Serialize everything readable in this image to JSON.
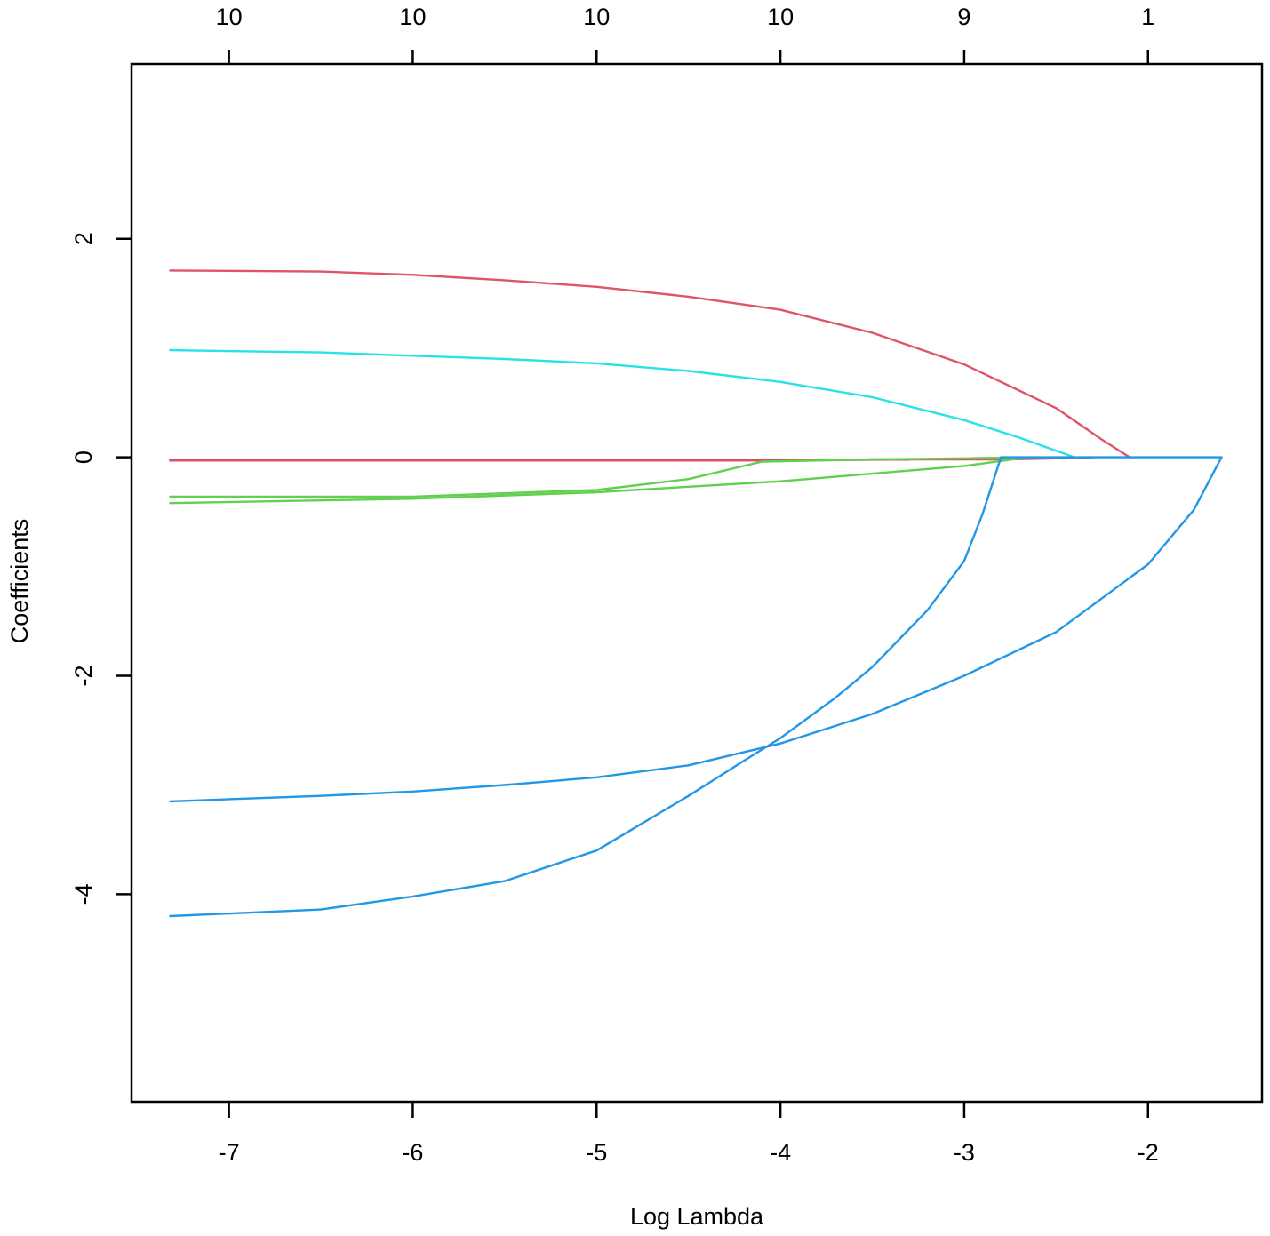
{
  "chart_data": {
    "type": "line",
    "title": "",
    "xlabel": "Log Lambda",
    "ylabel": "Coefficients",
    "xlim": [
      -7.53,
      -1.38
    ],
    "ylim": [
      -5.9,
      3.6
    ],
    "x_ticks": [
      -7,
      -6,
      -5,
      -4,
      -3,
      -2
    ],
    "x_tick_labels": [
      "-7",
      "-6",
      "-5",
      "-4",
      "-3",
      "-2"
    ],
    "y_ticks": [
      -4,
      -2,
      0,
      2
    ],
    "y_tick_labels": [
      "-4",
      "-2",
      "0",
      "2"
    ],
    "top_axis": {
      "positions": [
        -7,
        -6,
        -5,
        -4,
        -3,
        -2
      ],
      "labels": [
        "10",
        "10",
        "10",
        "10",
        "9",
        "1"
      ]
    },
    "grid": false,
    "legend": "none",
    "series": [
      {
        "color": "#000000",
        "x": [
          -7.32,
          -6.0,
          -5.0,
          -4.0,
          -3.5,
          -3.3
        ],
        "y": [
          -0.03,
          -0.03,
          -0.03,
          -0.03,
          -0.02,
          -0.02
        ]
      },
      {
        "color": "#DF536B",
        "x": [
          -7.32,
          -6.0,
          -5.0,
          -4.0,
          -3.3,
          -2.8,
          -2.5,
          -2.3
        ],
        "y": [
          -0.03,
          -0.03,
          -0.03,
          -0.03,
          -0.02,
          -0.02,
          -0.01,
          0.0
        ]
      },
      {
        "color": "#61D04F",
        "x": [
          -7.32,
          -6.0,
          -5.0,
          -4.5,
          -4.1,
          -3.5,
          -3.0,
          -2.7
        ],
        "y": [
          -0.36,
          -0.36,
          -0.3,
          -0.2,
          -0.04,
          -0.02,
          -0.01,
          0.0
        ]
      },
      {
        "color": "#61D04F",
        "x": [
          -7.32,
          -6.0,
          -5.0,
          -4.0,
          -3.0,
          -2.65
        ],
        "y": [
          -0.42,
          -0.38,
          -0.32,
          -0.22,
          -0.08,
          0.0
        ]
      },
      {
        "color": "#DF536B",
        "x": [
          -7.32,
          -6.5,
          -6.0,
          -5.5,
          -5.0,
          -4.5,
          -4.0,
          -3.5,
          -3.0,
          -2.5,
          -2.25,
          -2.1
        ],
        "y": [
          1.71,
          1.7,
          1.67,
          1.62,
          1.56,
          1.47,
          1.35,
          1.14,
          0.85,
          0.45,
          0.16,
          0.0
        ]
      },
      {
        "color": "#28E2E5",
        "x": [
          -7.32,
          -6.5,
          -6.0,
          -5.5,
          -5.0,
          -4.5,
          -4.0,
          -3.5,
          -3.0,
          -2.7,
          -2.5,
          -2.4
        ],
        "y": [
          0.98,
          0.96,
          0.93,
          0.9,
          0.86,
          0.79,
          0.69,
          0.55,
          0.34,
          0.18,
          0.06,
          0.0
        ]
      },
      {
        "color": "#2297E6",
        "x": [
          -7.32,
          -6.5,
          -6.0,
          -5.5,
          -5.0,
          -4.5,
          -4.0,
          -3.5,
          -3.0,
          -2.5,
          -2.0,
          -1.75,
          -1.6
        ],
        "y": [
          -3.15,
          -3.1,
          -3.06,
          -3.0,
          -2.93,
          -2.82,
          -2.62,
          -2.35,
          -2.0,
          -1.6,
          -0.98,
          -0.48,
          0.0
        ]
      },
      {
        "color": "#2297E6",
        "x": [
          -7.32,
          -6.5,
          -6.0,
          -5.5,
          -5.0,
          -4.5,
          -4.2,
          -4.0,
          -3.7,
          -3.5,
          -3.2,
          -3.0,
          -2.9,
          -2.8
        ],
        "y": [
          -4.2,
          -4.14,
          -4.02,
          -3.88,
          -3.6,
          -3.1,
          -2.78,
          -2.57,
          -2.2,
          -1.92,
          -1.4,
          -0.95,
          -0.52,
          0.0
        ]
      },
      {
        "color": "#2297E6",
        "x": [
          -2.8,
          -2.0,
          -1.6
        ],
        "y": [
          0.0,
          0.0,
          0.0
        ]
      }
    ]
  }
}
